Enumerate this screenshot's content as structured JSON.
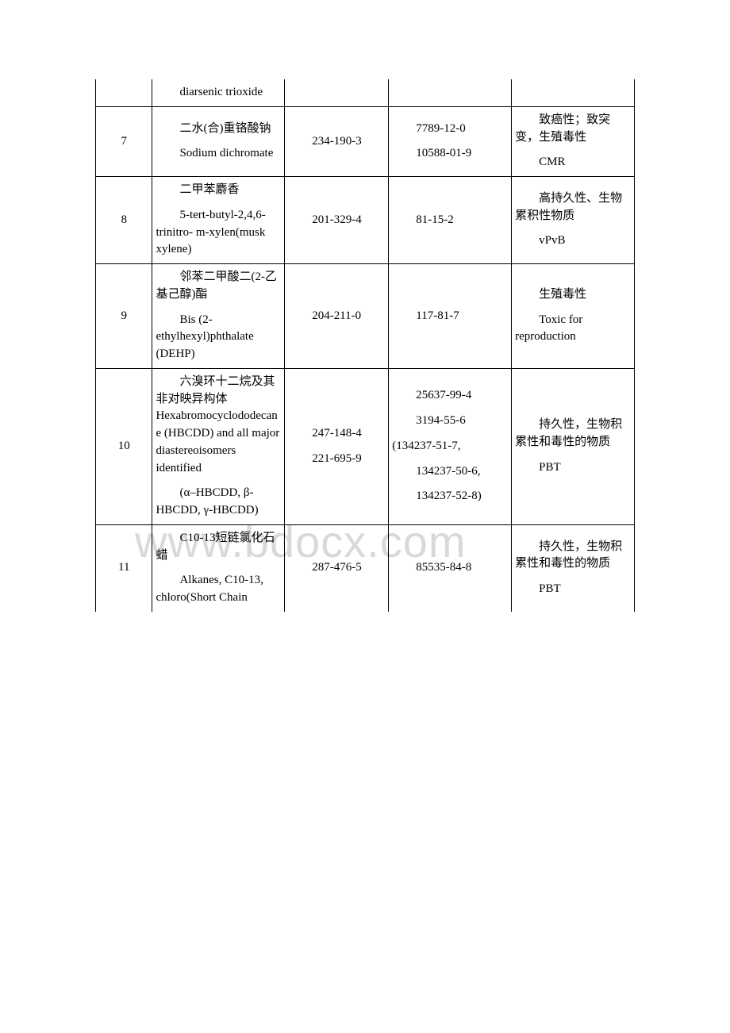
{
  "watermark": "www.bdocx.com",
  "rows": [
    {
      "num": "",
      "name_lines": [
        "　　diarsenic trioxide"
      ],
      "ec_lines": [
        ""
      ],
      "cas_lines": [
        ""
      ],
      "haz_lines": [
        ""
      ],
      "top_border": false
    },
    {
      "num": "7",
      "name_lines": [
        "　　二水(合)重铬酸钠",
        "",
        "　　Sodium dichromate"
      ],
      "ec_lines": [
        "　　234-190-3"
      ],
      "cas_lines": [
        "　　7789-12-0",
        "",
        "　　10588-01-9"
      ],
      "haz_lines": [
        "　　致癌性；致突变，生殖毒性",
        "",
        "　　CMR"
      ]
    },
    {
      "num": "8",
      "name_lines": [
        "　　二甲苯麝香",
        "",
        "　　5-tert-butyl-2,4,6-trinitro- m-xylen(musk xylene)"
      ],
      "ec_lines": [
        "　　201-329-4"
      ],
      "cas_lines": [
        "　　81-15-2"
      ],
      "haz_lines": [
        "　　高持久性、生物累积性物质",
        "",
        "　　vPvB"
      ]
    },
    {
      "num": "9",
      "name_lines": [
        "　　邻苯二甲酸二(2-乙基己醇)酯",
        "",
        "　　Bis (2-ethylhexyl)phthalate (DEHP)"
      ],
      "ec_lines": [
        "　　204-211-0"
      ],
      "cas_lines": [
        "　　117-81-7"
      ],
      "haz_lines": [
        "　　生殖毒性",
        "",
        "　　Toxic for reproduction"
      ]
    },
    {
      "num": "10",
      "name_lines": [
        "　　六溴环十二烷及其非对映异构体 Hexabromocyclododecane (HBCDD) and all major diastereoisomers identified",
        "",
        "　　(α–HBCDD, β-HBCDD, γ-HBCDD)"
      ],
      "ec_lines": [
        "　　247-148-4",
        "",
        "　　221-695-9"
      ],
      "cas_lines": [
        "　　25637-99-4",
        "",
        "　　3194-55-6",
        "",
        "(134237-51-7,",
        "",
        "　　134237-50-6,",
        "",
        "　　134237-52-8)"
      ],
      "haz_lines": [
        "　　持久性，生物积累性和毒性的物质",
        "",
        "　　PBT"
      ]
    },
    {
      "num": "11",
      "name_lines": [
        "　　C10-13短链氯化石蜡",
        "",
        "　　Alkanes, C10-13, chloro(Short Chain"
      ],
      "ec_lines": [
        "　　287-476-5"
      ],
      "cas_lines": [
        "　　85535-84-8"
      ],
      "haz_lines": [
        "　　持久性，生物积累性和毒性的物质",
        "",
        "　　PBT"
      ],
      "bottom_border": false
    }
  ]
}
